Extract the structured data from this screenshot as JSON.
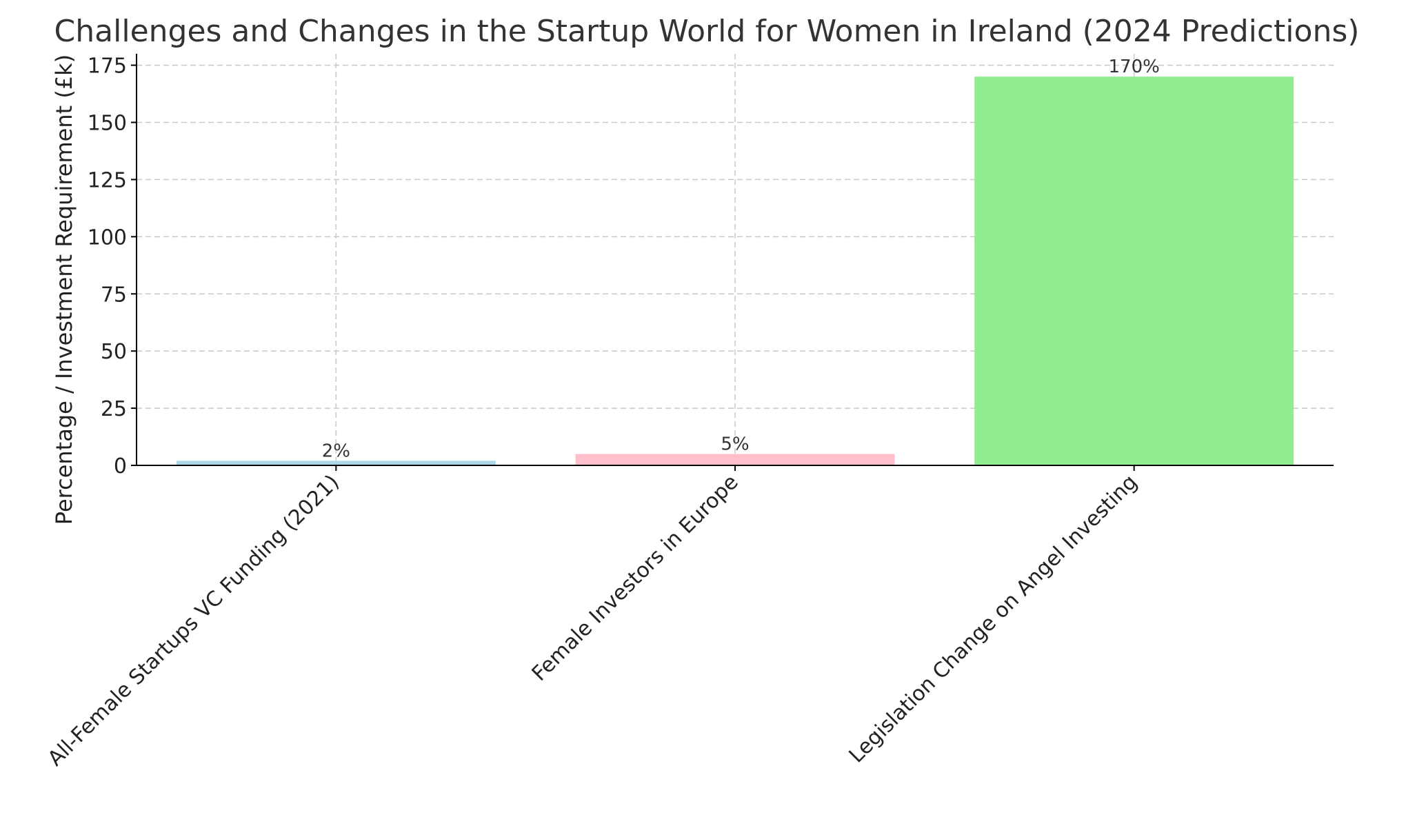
{
  "chart_data": {
    "type": "bar",
    "title": "Challenges and Changes in the Startup World for Women in Ireland (2024 Predictions)",
    "xlabel": "",
    "ylabel": "Percentage / Investment Requirement (£k)",
    "categories": [
      "All-Female Startups VC Funding (2021)",
      "Female Investors in Europe",
      "Legislation Change on Angel Investing"
    ],
    "values": [
      2,
      5,
      170
    ],
    "data_labels": [
      "2%",
      "5%",
      "170%"
    ],
    "colors": [
      "#add8e6",
      "#ffc0cb",
      "#90ee90"
    ],
    "ylim": [
      0,
      180
    ],
    "yticks": [
      0,
      25,
      50,
      75,
      100,
      125,
      150,
      175
    ],
    "grid": true,
    "legend": "none"
  }
}
